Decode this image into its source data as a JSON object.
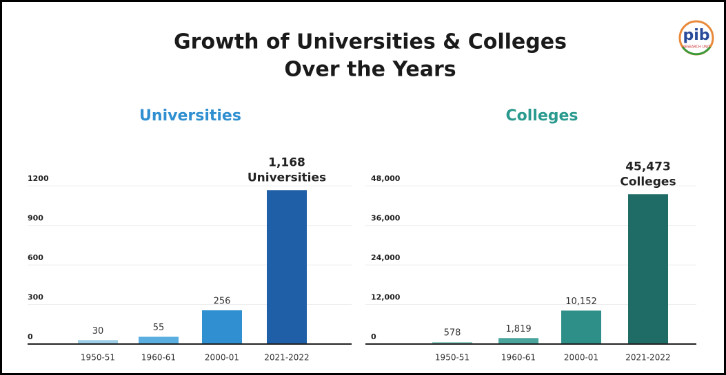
{
  "title_lines": [
    "Growth of Universities & Colleges",
    "Over the Years"
  ],
  "logo": {
    "text": "pib",
    "subtext": "RESEARCH UNIT"
  },
  "chart_data": [
    {
      "type": "bar",
      "title": "Universities",
      "title_color": "#2f8fd0",
      "categories": [
        "1950-51",
        "1960-61",
        "2000-01",
        "2021-2022"
      ],
      "values": [
        30,
        55,
        256,
        1168
      ],
      "value_labels": [
        "30",
        "55",
        "256",
        "1,168"
      ],
      "annotation": "Universities",
      "colors": [
        "#9fcfe8",
        "#5aaee0",
        "#2f8fd0",
        "#1f5fa8"
      ],
      "ylim": [
        0,
        1300
      ],
      "yticks": [
        0,
        300,
        600,
        900,
        1200
      ],
      "grid": true
    },
    {
      "type": "bar",
      "title": "Colleges",
      "title_color": "#2a9a8e",
      "categories": [
        "1950-51",
        "1960-61",
        "2000-01",
        "2021-2022"
      ],
      "values": [
        578,
        1819,
        10152,
        45473
      ],
      "value_labels": [
        "578",
        "1,819",
        "10,152",
        "45,473"
      ],
      "annotation": "Colleges",
      "colors": [
        "#7fc3bd",
        "#4aa59c",
        "#2e8f88",
        "#1f6b66"
      ],
      "ylim": [
        0,
        52000
      ],
      "yticks": [
        0,
        {
          "value": 12000,
          "label": "12,000"
        },
        {
          "value": 24000,
          "label": "24,000"
        },
        {
          "value": 36000,
          "label": "36,000"
        },
        {
          "value": 48000,
          "label": "48,000"
        }
      ],
      "grid": true
    }
  ]
}
